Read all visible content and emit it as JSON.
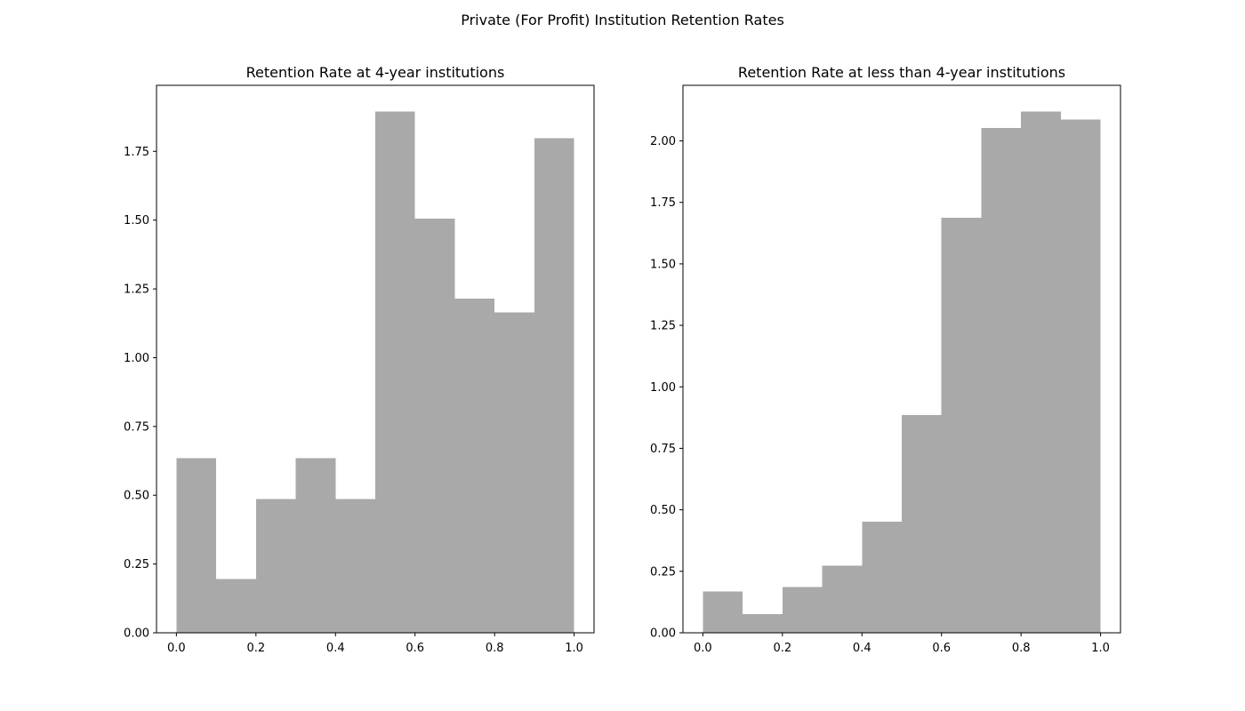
{
  "figure": {
    "title": "Private (For Profit) Institution Retention Rates",
    "background": "#ffffff"
  },
  "chart_data": [
    {
      "type": "bar",
      "subtype": "histogram",
      "title": "Retention Rate at 4-year institutions",
      "xlabel": "",
      "ylabel": "",
      "bin_edges": [
        0.0,
        0.1,
        0.2,
        0.3,
        0.4,
        0.5,
        0.6,
        0.7,
        0.8,
        0.9,
        1.0
      ],
      "values": [
        0.634,
        0.195,
        0.487,
        0.634,
        0.487,
        1.895,
        1.505,
        1.214,
        1.165,
        1.797
      ],
      "xlim": [
        -0.05,
        1.05
      ],
      "ylim": [
        0,
        1.99
      ],
      "xticks": [
        0.0,
        0.2,
        0.4,
        0.6,
        0.8,
        1.0
      ],
      "xtick_labels": [
        "0.0",
        "0.2",
        "0.4",
        "0.6",
        "0.8",
        "1.0"
      ],
      "yticks": [
        0.0,
        0.25,
        0.5,
        0.75,
        1.0,
        1.25,
        1.5,
        1.75
      ],
      "ytick_labels": [
        "0.00",
        "0.25",
        "0.50",
        "0.75",
        "1.00",
        "1.25",
        "1.50",
        "1.75"
      ],
      "bar_color": "#a9a9a9",
      "grid": false,
      "legend": "none"
    },
    {
      "type": "bar",
      "subtype": "histogram",
      "title": "Retention Rate at less than 4-year institutions",
      "xlabel": "",
      "ylabel": "",
      "bin_edges": [
        0.0,
        0.1,
        0.2,
        0.3,
        0.4,
        0.5,
        0.6,
        0.7,
        0.8,
        0.9,
        1.0
      ],
      "values": [
        0.168,
        0.075,
        0.186,
        0.273,
        0.451,
        0.885,
        1.687,
        2.052,
        2.12,
        2.087
      ],
      "xlim": [
        -0.05,
        1.05
      ],
      "ylim": [
        0,
        2.226
      ],
      "xticks": [
        0.0,
        0.2,
        0.4,
        0.6,
        0.8,
        1.0
      ],
      "xtick_labels": [
        "0.0",
        "0.2",
        "0.4",
        "0.6",
        "0.8",
        "1.0"
      ],
      "yticks": [
        0.0,
        0.25,
        0.5,
        0.75,
        1.0,
        1.25,
        1.5,
        1.75,
        2.0
      ],
      "ytick_labels": [
        "0.00",
        "0.25",
        "0.50",
        "0.75",
        "1.00",
        "1.25",
        "1.50",
        "1.75",
        "2.00"
      ],
      "bar_color": "#a9a9a9",
      "grid": false,
      "legend": "none"
    }
  ]
}
